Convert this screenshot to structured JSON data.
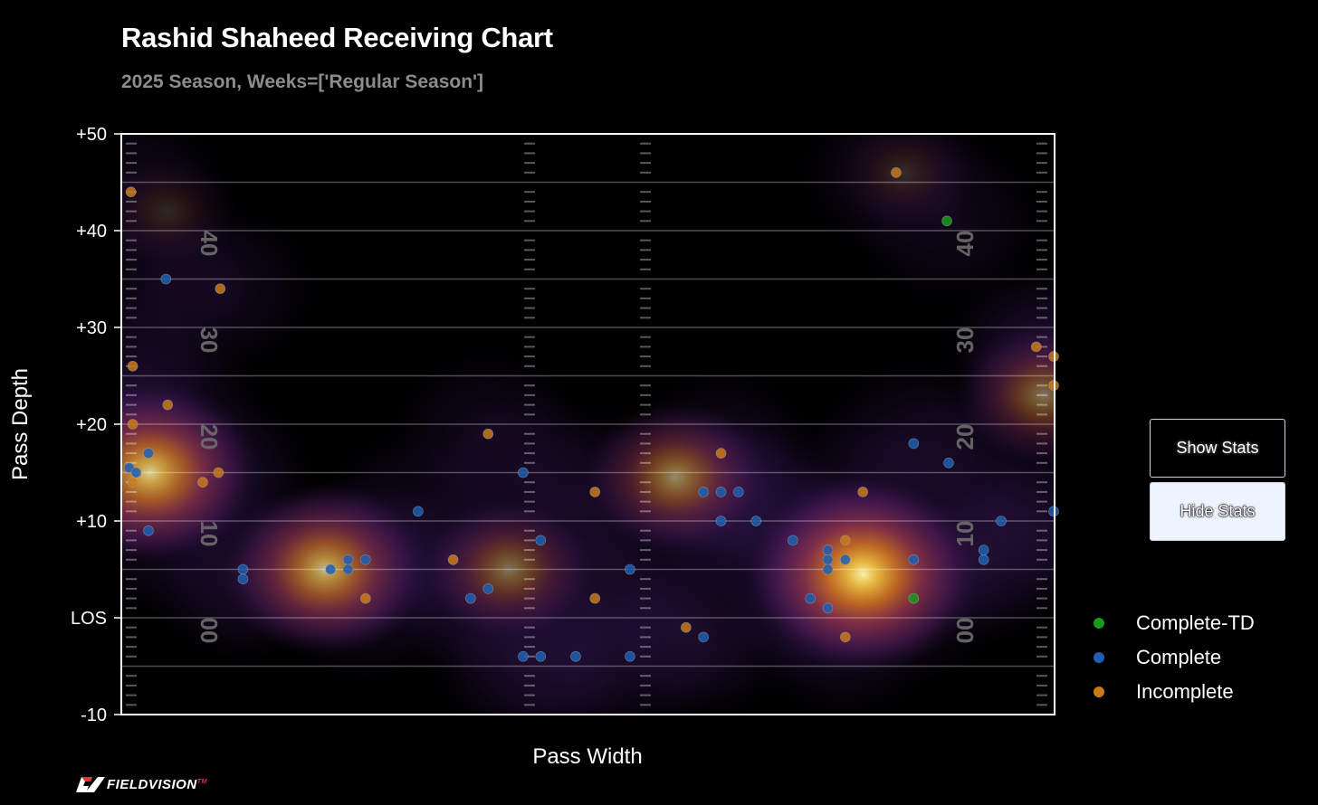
{
  "chart_data": {
    "type": "scatter",
    "title": "Rashid Shaheed Receiving Chart",
    "subtitle": "2025 Season, Weeks=['Regular Season']",
    "xlabel": "Pass Width",
    "ylabel": "Pass Depth",
    "xlim": [
      -26.65,
      26.65
    ],
    "ylim": [
      -10,
      50
    ],
    "yticks": [
      {
        "value": 50,
        "label": "+50"
      },
      {
        "value": 40,
        "label": "+40"
      },
      {
        "value": 30,
        "label": "+30"
      },
      {
        "value": 20,
        "label": "+20"
      },
      {
        "value": 10,
        "label": "+10"
      },
      {
        "value": 0,
        "label": "LOS"
      },
      {
        "value": -10,
        "label": "-10"
      }
    ],
    "yard_numbers": [
      {
        "value": 40,
        "label": "40"
      },
      {
        "value": 30,
        "label": "30"
      },
      {
        "value": 20,
        "label": "20"
      },
      {
        "value": 10,
        "label": "10"
      },
      {
        "value": 0,
        "label": "00"
      }
    ],
    "series": [
      {
        "name": "Complete-TD",
        "color": "#1a9a1a",
        "points": [
          [
            20.5,
            41
          ],
          [
            18.6,
            2
          ]
        ]
      },
      {
        "name": "Complete",
        "color": "#1f5fb0",
        "points": [
          [
            -26.2,
            15.5
          ],
          [
            -25.8,
            15
          ],
          [
            -24.1,
            35
          ],
          [
            -25.1,
            17
          ],
          [
            -25.1,
            9
          ],
          [
            -19.7,
            5
          ],
          [
            -19.7,
            4
          ],
          [
            -14.7,
            5
          ],
          [
            -13.7,
            6
          ],
          [
            -13.7,
            5
          ],
          [
            -12.7,
            6
          ],
          [
            -9.7,
            11
          ],
          [
            -6.7,
            2
          ],
          [
            -5.7,
            3
          ],
          [
            -3.7,
            15
          ],
          [
            -3.7,
            -4
          ],
          [
            -2.7,
            8
          ],
          [
            -2.7,
            -4
          ],
          [
            -0.7,
            -4
          ],
          [
            2.4,
            5
          ],
          [
            2.4,
            -4
          ],
          [
            6.6,
            13
          ],
          [
            6.6,
            -2
          ],
          [
            7.6,
            13
          ],
          [
            7.6,
            10
          ],
          [
            8.6,
            13
          ],
          [
            9.6,
            10
          ],
          [
            11.7,
            8
          ],
          [
            12.7,
            2
          ],
          [
            13.7,
            7
          ],
          [
            13.7,
            6
          ],
          [
            13.7,
            5
          ],
          [
            13.7,
            1
          ],
          [
            14.7,
            6
          ],
          [
            18.6,
            18
          ],
          [
            18.6,
            6
          ],
          [
            20.6,
            16
          ],
          [
            22.6,
            7
          ],
          [
            22.6,
            6
          ],
          [
            23.6,
            10
          ],
          [
            26.6,
            11
          ]
        ]
      },
      {
        "name": "Incomplete",
        "color": "#c97a1a",
        "points": [
          [
            -26.1,
            44
          ],
          [
            -21.0,
            34
          ],
          [
            -26.0,
            26
          ],
          [
            -24.0,
            22
          ],
          [
            -26.0,
            20
          ],
          [
            -26.0,
            14
          ],
          [
            -22.0,
            14
          ],
          [
            -21.1,
            15
          ],
          [
            -12.7,
            2
          ],
          [
            -7.7,
            6
          ],
          [
            -5.7,
            19
          ],
          [
            0.4,
            13
          ],
          [
            0.4,
            2
          ],
          [
            5.6,
            -1
          ],
          [
            7.6,
            17
          ],
          [
            14.7,
            8
          ],
          [
            14.7,
            -2
          ],
          [
            15.7,
            13
          ],
          [
            17.6,
            46
          ],
          [
            25.6,
            28
          ],
          [
            26.6,
            27
          ],
          [
            26.6,
            24
          ]
        ]
      }
    ],
    "density_hotspots": [
      {
        "x": -25.0,
        "y": 15,
        "weight": 0.85
      },
      {
        "x": -15.0,
        "y": 5,
        "weight": 0.75
      },
      {
        "x": -4.5,
        "y": 5,
        "weight": 0.45
      },
      {
        "x": 5.0,
        "y": 14.5,
        "weight": 0.55
      },
      {
        "x": 15.7,
        "y": 4.5,
        "weight": 1.0
      },
      {
        "x": 26.0,
        "y": 23,
        "weight": 0.45
      },
      {
        "x": 18.0,
        "y": 46,
        "weight": 0.15
      },
      {
        "x": -24.0,
        "y": 42,
        "weight": 0.15
      }
    ]
  },
  "buttons": {
    "show_stats": "Show Stats",
    "hide_stats": "Hide Stats"
  },
  "legend": [
    {
      "label": "Complete-TD",
      "color": "#1a9a1a"
    },
    {
      "label": "Complete",
      "color": "#1f5fb0"
    },
    {
      "label": "Incomplete",
      "color": "#c97a1a"
    }
  ],
  "logo": {
    "text": "FIELDVISION",
    "mark": "TM",
    "icon": "fieldvision-logo-icon"
  }
}
